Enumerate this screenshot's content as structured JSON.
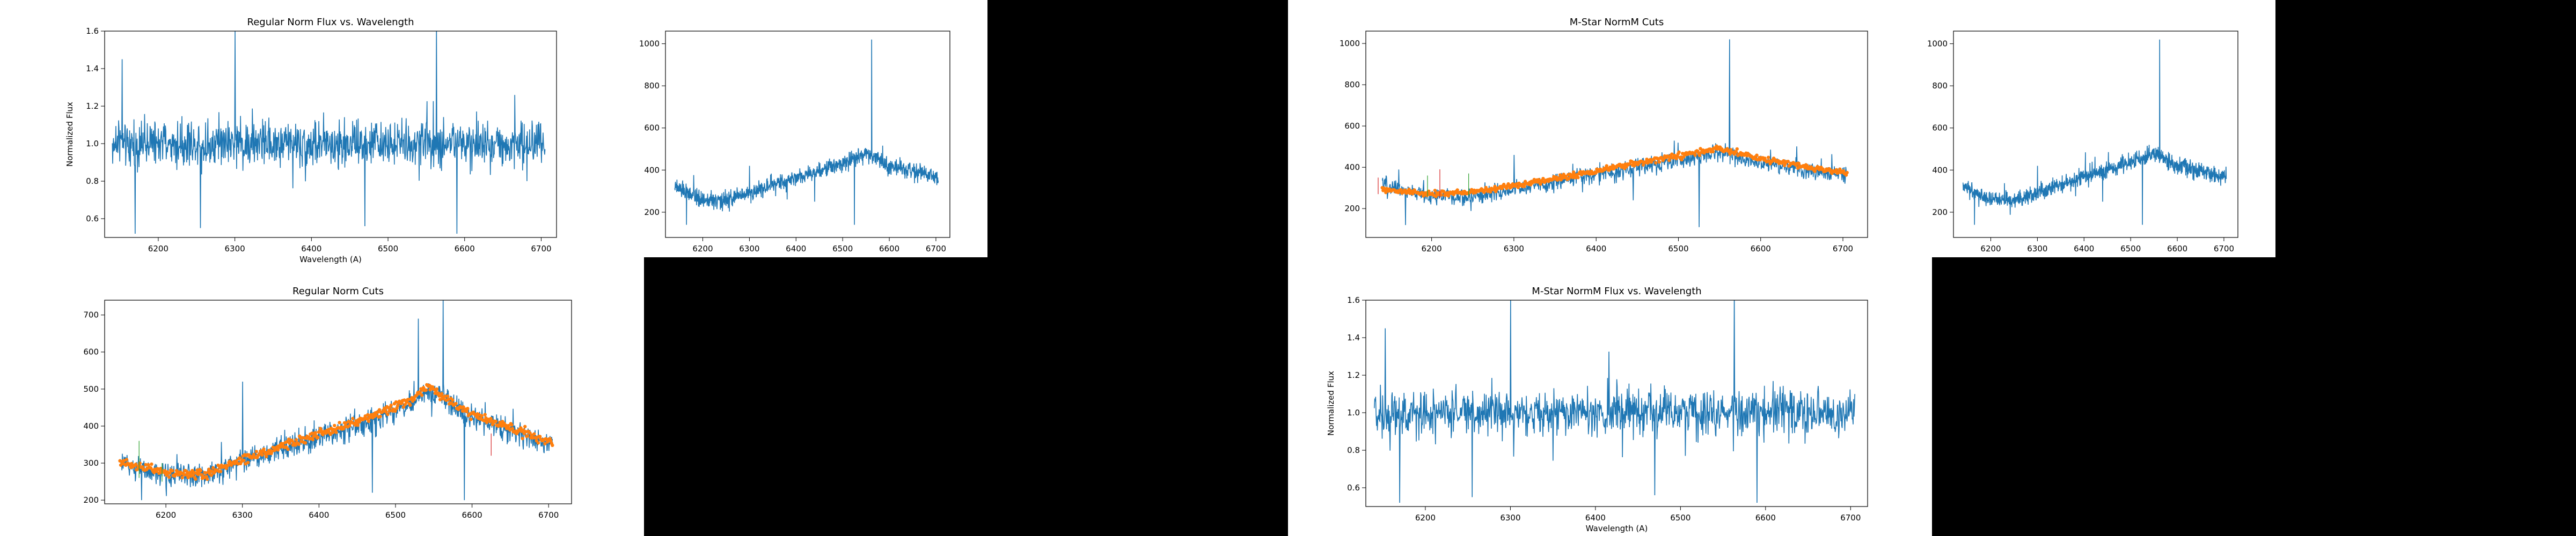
{
  "colors": {
    "spectrum": "#1f77b4",
    "cut_points": "#ff7f0e",
    "cut_line_green": "#2ca02c",
    "cut_line_red": "#d62728",
    "black_panel": "#000000"
  },
  "chart_data": [
    {
      "id": "regular-flux",
      "type": "line",
      "title": "Regular Norm Flux vs. Wavelength",
      "xlabel": "Wavelength (A)",
      "ylabel": "Normalized Flux",
      "xlim": [
        6130,
        6720
      ],
      "ylim": [
        0.5,
        1.6
      ],
      "xticks": [
        "6200",
        "6300",
        "6400",
        "6500",
        "6600",
        "6700"
      ],
      "yticks": [
        "0.6",
        "0.8",
        "1.0",
        "1.2",
        "1.4",
        "1.6"
      ],
      "grid": false,
      "series": [
        {
          "style": "spectrum",
          "x_range": [
            6140,
            6705
          ],
          "baseline": [
            [
              6140,
              1.0
            ],
            [
              6705,
              1.0
            ]
          ],
          "noise": 0.12,
          "spikes": [
            [
              6300,
              1.6
            ],
            [
              6563,
              1.65
            ],
            [
              6153,
              1.45
            ]
          ],
          "dips": [
            [
              6170,
              0.52
            ],
            [
              6255,
              0.55
            ],
            [
              6470,
              0.56
            ],
            [
              6590,
              0.52
            ]
          ]
        }
      ]
    },
    {
      "id": "regular-spectrum-small",
      "type": "line",
      "title": "",
      "xlabel": "",
      "ylabel": "",
      "xlim": [
        6120,
        6730
      ],
      "ylim": [
        80,
        1060
      ],
      "xticks": [
        "6200",
        "6300",
        "6400",
        "6500",
        "6600",
        "6700"
      ],
      "yticks": [
        "200",
        "400",
        "600",
        "800",
        "1000"
      ],
      "grid": false,
      "series": [
        {
          "style": "spectrum",
          "x_range": [
            6140,
            6705
          ],
          "baseline": [
            [
              6140,
              320
            ],
            [
              6200,
              260
            ],
            [
              6250,
              255
            ],
            [
              6350,
              330
            ],
            [
              6450,
              400
            ],
            [
              6520,
              450
            ],
            [
              6550,
              480
            ],
            [
              6600,
              420
            ],
            [
              6705,
              360
            ]
          ],
          "noise": 38,
          "spikes": [
            [
              6562,
              1020
            ],
            [
              6300,
              420
            ]
          ],
          "dips": [
            [
              6165,
              140
            ],
            [
              6525,
              140
            ],
            [
              6440,
              250
            ]
          ]
        }
      ]
    },
    {
      "id": "mstar-cuts",
      "type": "line",
      "title": "M-Star NormM Cuts",
      "xlabel": "",
      "ylabel": "",
      "xlim": [
        6120,
        6730
      ],
      "ylim": [
        60,
        1060
      ],
      "xticks": [
        "6200",
        "6300",
        "6400",
        "6500",
        "6600",
        "6700"
      ],
      "yticks": [
        "200",
        "400",
        "600",
        "800",
        "1000"
      ],
      "grid": false,
      "series": [
        {
          "style": "spectrum",
          "x_range": [
            6140,
            6705
          ],
          "baseline": [
            [
              6140,
              310
            ],
            [
              6200,
              260
            ],
            [
              6250,
              255
            ],
            [
              6350,
              330
            ],
            [
              6450,
              400
            ],
            [
              6520,
              450
            ],
            [
              6550,
              480
            ],
            [
              6600,
              420
            ],
            [
              6705,
              360
            ]
          ],
          "noise": 42,
          "spikes": [
            [
              6562,
              1020
            ],
            [
              6300,
              460
            ]
          ],
          "dips": [
            [
              6168,
              120
            ],
            [
              6525,
              110
            ],
            [
              6445,
              240
            ]
          ]
        },
        {
          "style": "cuts",
          "x_range": [
            6140,
            6705
          ],
          "baseline": [
            [
              6140,
              290
            ],
            [
              6200,
              270
            ],
            [
              6250,
              280
            ],
            [
              6350,
              345
            ],
            [
              6450,
              420
            ],
            [
              6550,
              490
            ],
            [
              6600,
              440
            ],
            [
              6705,
              370
            ]
          ],
          "noise": 14
        }
      ],
      "cut_lines": [
        [
          6195,
          260,
          360
        ],
        [
          6210,
          250,
          390
        ],
        [
          6245,
          260,
          370
        ],
        [
          6135,
          270,
          350
        ]
      ]
    },
    {
      "id": "mstar-spectrum-small",
      "type": "line",
      "title": "",
      "xlabel": "",
      "ylabel": "",
      "xlim": [
        6120,
        6730
      ],
      "ylim": [
        80,
        1060
      ],
      "xticks": [
        "6200",
        "6300",
        "6400",
        "6500",
        "6600",
        "6700"
      ],
      "yticks": [
        "200",
        "400",
        "600",
        "800",
        "1000"
      ],
      "grid": false,
      "series": [
        {
          "style": "spectrum",
          "x_range": [
            6140,
            6705
          ],
          "baseline": [
            [
              6140,
              320
            ],
            [
              6200,
              260
            ],
            [
              6250,
              255
            ],
            [
              6350,
              330
            ],
            [
              6450,
              400
            ],
            [
              6520,
              450
            ],
            [
              6550,
              480
            ],
            [
              6600,
              420
            ],
            [
              6705,
              360
            ]
          ],
          "noise": 38,
          "spikes": [
            [
              6562,
              1020
            ],
            [
              6300,
              420
            ]
          ],
          "dips": [
            [
              6165,
              140
            ],
            [
              6525,
              140
            ],
            [
              6440,
              250
            ]
          ]
        }
      ]
    },
    {
      "id": "regular-cuts",
      "type": "line",
      "title": "Regular Norm Cuts",
      "xlabel": "",
      "ylabel": "",
      "xlim": [
        6120,
        6730
      ],
      "ylim": [
        190,
        740
      ],
      "xticks": [
        "6200",
        "6300",
        "6400",
        "6500",
        "6600",
        "6700"
      ],
      "yticks": [
        "200",
        "300",
        "400",
        "500",
        "600",
        "700"
      ],
      "grid": false,
      "series": [
        {
          "style": "spectrum",
          "x_range": [
            6140,
            6705
          ],
          "baseline": [
            [
              6140,
              300
            ],
            [
              6200,
              270
            ],
            [
              6250,
              265
            ],
            [
              6350,
              340
            ],
            [
              6450,
              400
            ],
            [
              6520,
              460
            ],
            [
              6545,
              500
            ],
            [
              6600,
              420
            ],
            [
              6705,
              350
            ]
          ],
          "noise": 32,
          "spikes": [
            [
              6562,
              740
            ],
            [
              6300,
              520
            ],
            [
              6530,
              690
            ]
          ],
          "dips": [
            [
              6168,
              200
            ],
            [
              6470,
              220
            ],
            [
              6590,
              200
            ]
          ]
        },
        {
          "style": "cuts",
          "x_range": [
            6140,
            6705
          ],
          "baseline": [
            [
              6140,
              300
            ],
            [
              6200,
              275
            ],
            [
              6250,
              270
            ],
            [
              6350,
              345
            ],
            [
              6450,
              410
            ],
            [
              6520,
              470
            ],
            [
              6545,
              505
            ],
            [
              6600,
              430
            ],
            [
              6705,
              355
            ]
          ],
          "noise": 12
        }
      ],
      "cut_lines": [
        [
          6165,
          260,
          360
        ],
        [
          6625,
          320,
          380
        ],
        [
          6195,
          250,
          300
        ]
      ]
    },
    {
      "id": "mstar-flux",
      "type": "line",
      "title": "M-Star NormM Flux vs. Wavelength",
      "xlabel": "Wavelength (A)",
      "ylabel": "Normalized Flux",
      "xlim": [
        6130,
        6720
      ],
      "ylim": [
        0.5,
        1.6
      ],
      "xticks": [
        "6200",
        "6300",
        "6400",
        "6500",
        "6600",
        "6700"
      ],
      "yticks": [
        "0.6",
        "0.8",
        "1.0",
        "1.2",
        "1.4",
        "1.6"
      ],
      "grid": false,
      "series": [
        {
          "style": "spectrum",
          "x_range": [
            6140,
            6705
          ],
          "baseline": [
            [
              6140,
              1.0
            ],
            [
              6705,
              1.0
            ]
          ],
          "noise": 0.12,
          "spikes": [
            [
              6300,
              1.6
            ],
            [
              6563,
              1.65
            ],
            [
              6153,
              1.45
            ]
          ],
          "dips": [
            [
              6170,
              0.52
            ],
            [
              6255,
              0.55
            ],
            [
              6470,
              0.56
            ],
            [
              6590,
              0.52
            ]
          ]
        }
      ]
    }
  ]
}
